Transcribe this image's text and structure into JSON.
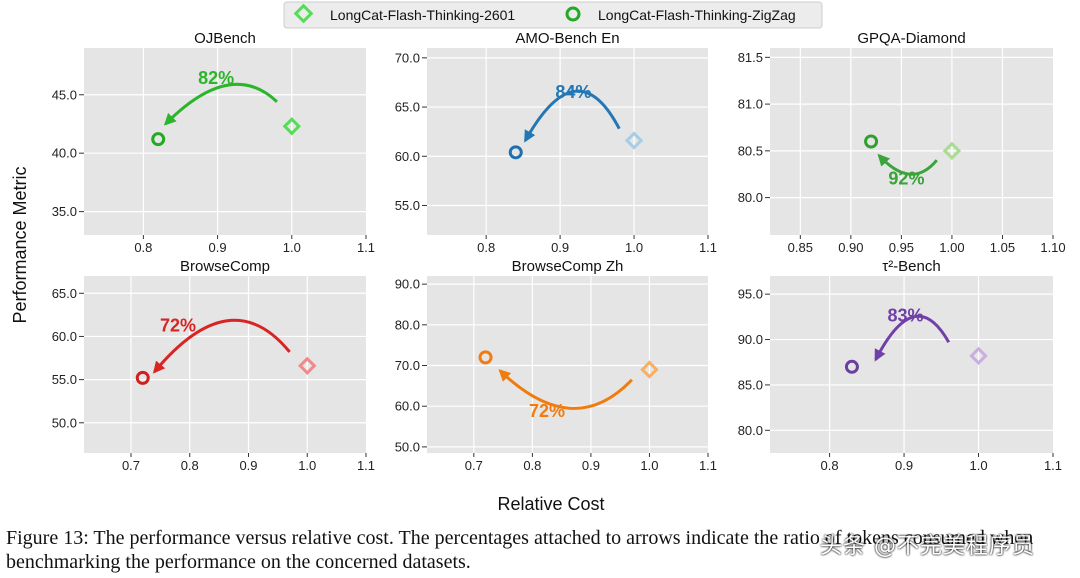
{
  "legend": {
    "items": [
      {
        "label": "LongCat-Flash-Thinking-2601",
        "marker": "diamond-icon",
        "color": "#55dd55"
      },
      {
        "label": "LongCat-Flash-Thinking-ZigZag",
        "marker": "circle-icon",
        "color": "#22aa22"
      }
    ]
  },
  "figure": {
    "ylabel": "Performance Metric",
    "xlabel": "Relative Cost"
  },
  "caption": {
    "text": "Figure 13: The performance versus relative cost. The percentages attached to arrows indicate the ratio of tokens consumed when benchmarking the performance on the concerned datasets."
  },
  "watermark": {
    "text": "头条 @不完美程序员"
  },
  "chart_data": [
    {
      "type": "scatter",
      "title": "OJBench",
      "xlim": [
        0.72,
        1.1
      ],
      "ylim": [
        33.0,
        49.0
      ],
      "xticks": [
        "0.8",
        "0.9",
        "1.0",
        "1.1"
      ],
      "xtickvals": [
        0.8,
        0.9,
        1.0,
        1.1
      ],
      "yticks": [
        "35.0",
        "40.0",
        "45.0"
      ],
      "ytickvals": [
        35.0,
        40.0,
        45.0
      ],
      "points": [
        {
          "series": "LongCat-Flash-Thinking-2601",
          "x": 1.0,
          "y": 42.3
        },
        {
          "series": "LongCat-Flash-Thinking-ZigZag",
          "x": 0.82,
          "y": 41.2
        }
      ],
      "annotation": {
        "label": "82%",
        "color": "#2ab52a",
        "position": "above"
      },
      "colors": {
        "diamond": "#55dd55",
        "circle": "#22aa22"
      }
    },
    {
      "type": "scatter",
      "title": "AMO-Bench En",
      "xlim": [
        0.72,
        1.1
      ],
      "ylim": [
        52.0,
        71.0
      ],
      "xticks": [
        "0.8",
        "0.9",
        "1.0",
        "1.1"
      ],
      "xtickvals": [
        0.8,
        0.9,
        1.0,
        1.1
      ],
      "yticks": [
        "55.0",
        "60.0",
        "65.0",
        "70.0"
      ],
      "ytickvals": [
        55.0,
        60.0,
        65.0,
        70.0
      ],
      "points": [
        {
          "series": "LongCat-Flash-Thinking-2601",
          "x": 1.0,
          "y": 61.6
        },
        {
          "series": "LongCat-Flash-Thinking-ZigZag",
          "x": 0.84,
          "y": 60.4
        }
      ],
      "annotation": {
        "label": "84%",
        "color": "#2377b4",
        "position": "above"
      },
      "colors": {
        "diamond": "#a6cde6",
        "circle": "#1f6fb0"
      }
    },
    {
      "type": "scatter",
      "title": "GPQA-Diamond",
      "xlim": [
        0.82,
        1.1
      ],
      "ylim": [
        79.6,
        81.6
      ],
      "xticks": [
        "0.85",
        "0.90",
        "0.95",
        "1.00",
        "1.05",
        "1.10"
      ],
      "xtickvals": [
        0.85,
        0.9,
        0.95,
        1.0,
        1.05,
        1.1
      ],
      "yticks": [
        "80.0",
        "80.5",
        "81.0",
        "81.5"
      ],
      "ytickvals": [
        80.0,
        80.5,
        81.0,
        81.5
      ],
      "points": [
        {
          "series": "LongCat-Flash-Thinking-2601",
          "x": 1.0,
          "y": 80.5
        },
        {
          "series": "LongCat-Flash-Thinking-ZigZag",
          "x": 0.92,
          "y": 80.6
        }
      ],
      "annotation": {
        "label": "92%",
        "color": "#3aa33a",
        "position": "below"
      },
      "colors": {
        "diamond": "#a8dd8f",
        "circle": "#2fa02f"
      }
    },
    {
      "type": "scatter",
      "title": "BrowseComp",
      "xlim": [
        0.62,
        1.1
      ],
      "ylim": [
        46.5,
        67.0
      ],
      "xticks": [
        "0.7",
        "0.8",
        "0.9",
        "1.0",
        "1.1"
      ],
      "xtickvals": [
        0.7,
        0.8,
        0.9,
        1.0,
        1.1
      ],
      "yticks": [
        "50.0",
        "55.0",
        "60.0",
        "65.0"
      ],
      "ytickvals": [
        50.0,
        55.0,
        60.0,
        65.0
      ],
      "points": [
        {
          "series": "LongCat-Flash-Thinking-2601",
          "x": 1.0,
          "y": 56.6
        },
        {
          "series": "LongCat-Flash-Thinking-ZigZag",
          "x": 0.72,
          "y": 55.2
        }
      ],
      "annotation": {
        "label": "72%",
        "color": "#d92424",
        "position": "above"
      },
      "colors": {
        "diamond": "#f08a8a",
        "circle": "#d21e1e"
      }
    },
    {
      "type": "scatter",
      "title": "BrowseComp Zh",
      "xlim": [
        0.62,
        1.1
      ],
      "ylim": [
        48.5,
        92.0
      ],
      "xticks": [
        "0.7",
        "0.8",
        "0.9",
        "1.0",
        "1.1"
      ],
      "xtickvals": [
        0.7,
        0.8,
        0.9,
        1.0,
        1.1
      ],
      "yticks": [
        "50.0",
        "60.0",
        "70.0",
        "80.0",
        "90.0"
      ],
      "ytickvals": [
        50.0,
        60.0,
        70.0,
        80.0,
        90.0
      ],
      "points": [
        {
          "series": "LongCat-Flash-Thinking-2601",
          "x": 1.0,
          "y": 69.0
        },
        {
          "series": "LongCat-Flash-Thinking-ZigZag",
          "x": 0.72,
          "y": 72.0
        }
      ],
      "annotation": {
        "label": "72%",
        "color": "#f07c10",
        "position": "below"
      },
      "colors": {
        "diamond": "#f8b060",
        "circle": "#f07c10"
      }
    },
    {
      "type": "scatter",
      "title": "τ²-Bench",
      "xlim": [
        0.72,
        1.1
      ],
      "ylim": [
        77.5,
        97.0
      ],
      "xticks": [
        "0.8",
        "0.9",
        "1.0",
        "1.1"
      ],
      "xtickvals": [
        0.8,
        0.9,
        1.0,
        1.1
      ],
      "yticks": [
        "80.0",
        "85.0",
        "90.0",
        "95.0"
      ],
      "ytickvals": [
        80.0,
        85.0,
        90.0,
        95.0
      ],
      "points": [
        {
          "series": "LongCat-Flash-Thinking-2601",
          "x": 1.0,
          "y": 88.2
        },
        {
          "series": "LongCat-Flash-Thinking-ZigZag",
          "x": 0.83,
          "y": 87.0
        }
      ],
      "annotation": {
        "label": "83%",
        "color": "#7040a8",
        "position": "above"
      },
      "colors": {
        "diamond": "#c9aee0",
        "circle": "#6a3fa0"
      }
    }
  ]
}
